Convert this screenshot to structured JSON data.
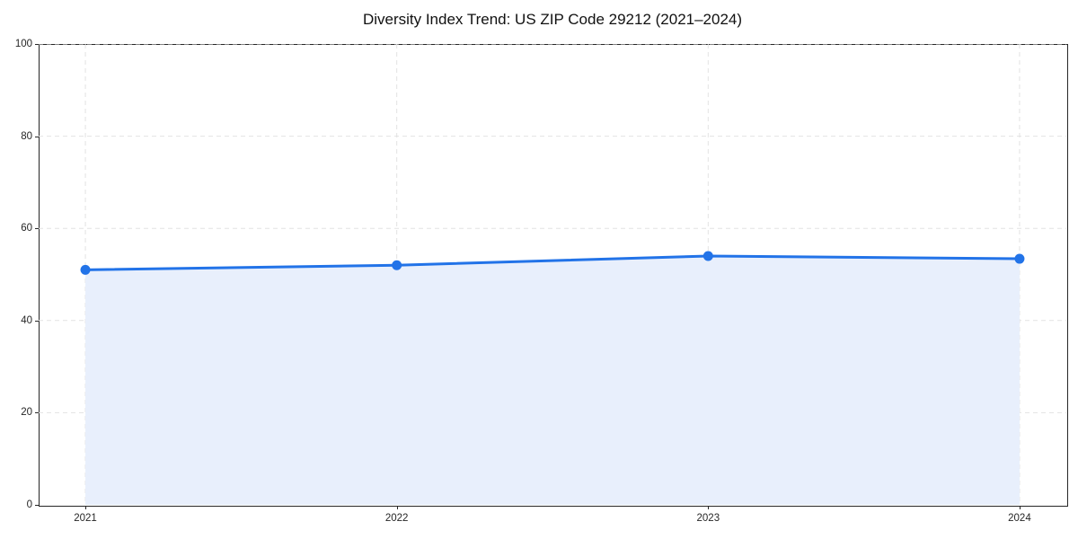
{
  "chart_data": {
    "type": "area",
    "title": "Diversity Index Trend: US ZIP Code 29212 (2021–2024)",
    "x": [
      2021,
      2022,
      2023,
      2024
    ],
    "values": [
      51,
      52,
      54,
      53.4
    ],
    "xlabel": "",
    "ylabel": "",
    "ylim": [
      0,
      100
    ],
    "yticks": [
      0,
      20,
      40,
      60,
      80,
      100
    ],
    "grid": true,
    "legend_position": "none",
    "colors": {
      "line": "#2273e8",
      "marker": "#2273e8",
      "fill": "#e8effc",
      "grid": "#e2e2e2",
      "axis": "#262626",
      "text": "#262626",
      "background": "#ffffff"
    }
  }
}
